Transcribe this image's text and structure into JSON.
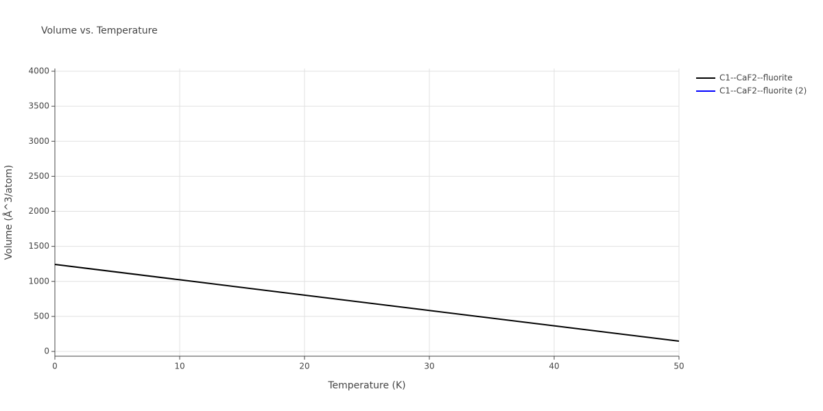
{
  "chart_data": {
    "type": "line",
    "title": "Volume vs. Temperature",
    "x_label": "Temperature (K)",
    "y_label": "Volume (Å^3/atom)",
    "x": [
      0,
      10,
      20,
      30,
      40,
      50
    ],
    "series": [
      {
        "name": "C1--CaF2--fluorite",
        "color": "#000000",
        "values": [
          1242,
          1023,
          804,
          585,
          366,
          147
        ]
      },
      {
        "name": "C1--CaF2--fluorite (2)",
        "color": "#0000ff",
        "values": [
          null,
          null,
          null,
          null,
          null,
          null
        ]
      }
    ],
    "xlim": [
      0,
      50
    ],
    "xticks": [
      0,
      10,
      20,
      30,
      40,
      50
    ],
    "ylim": [
      -68,
      4039
    ],
    "yticks": [
      0,
      500,
      1000,
      1500,
      2000,
      2500,
      3000,
      3500,
      4000
    ],
    "grid": true
  }
}
